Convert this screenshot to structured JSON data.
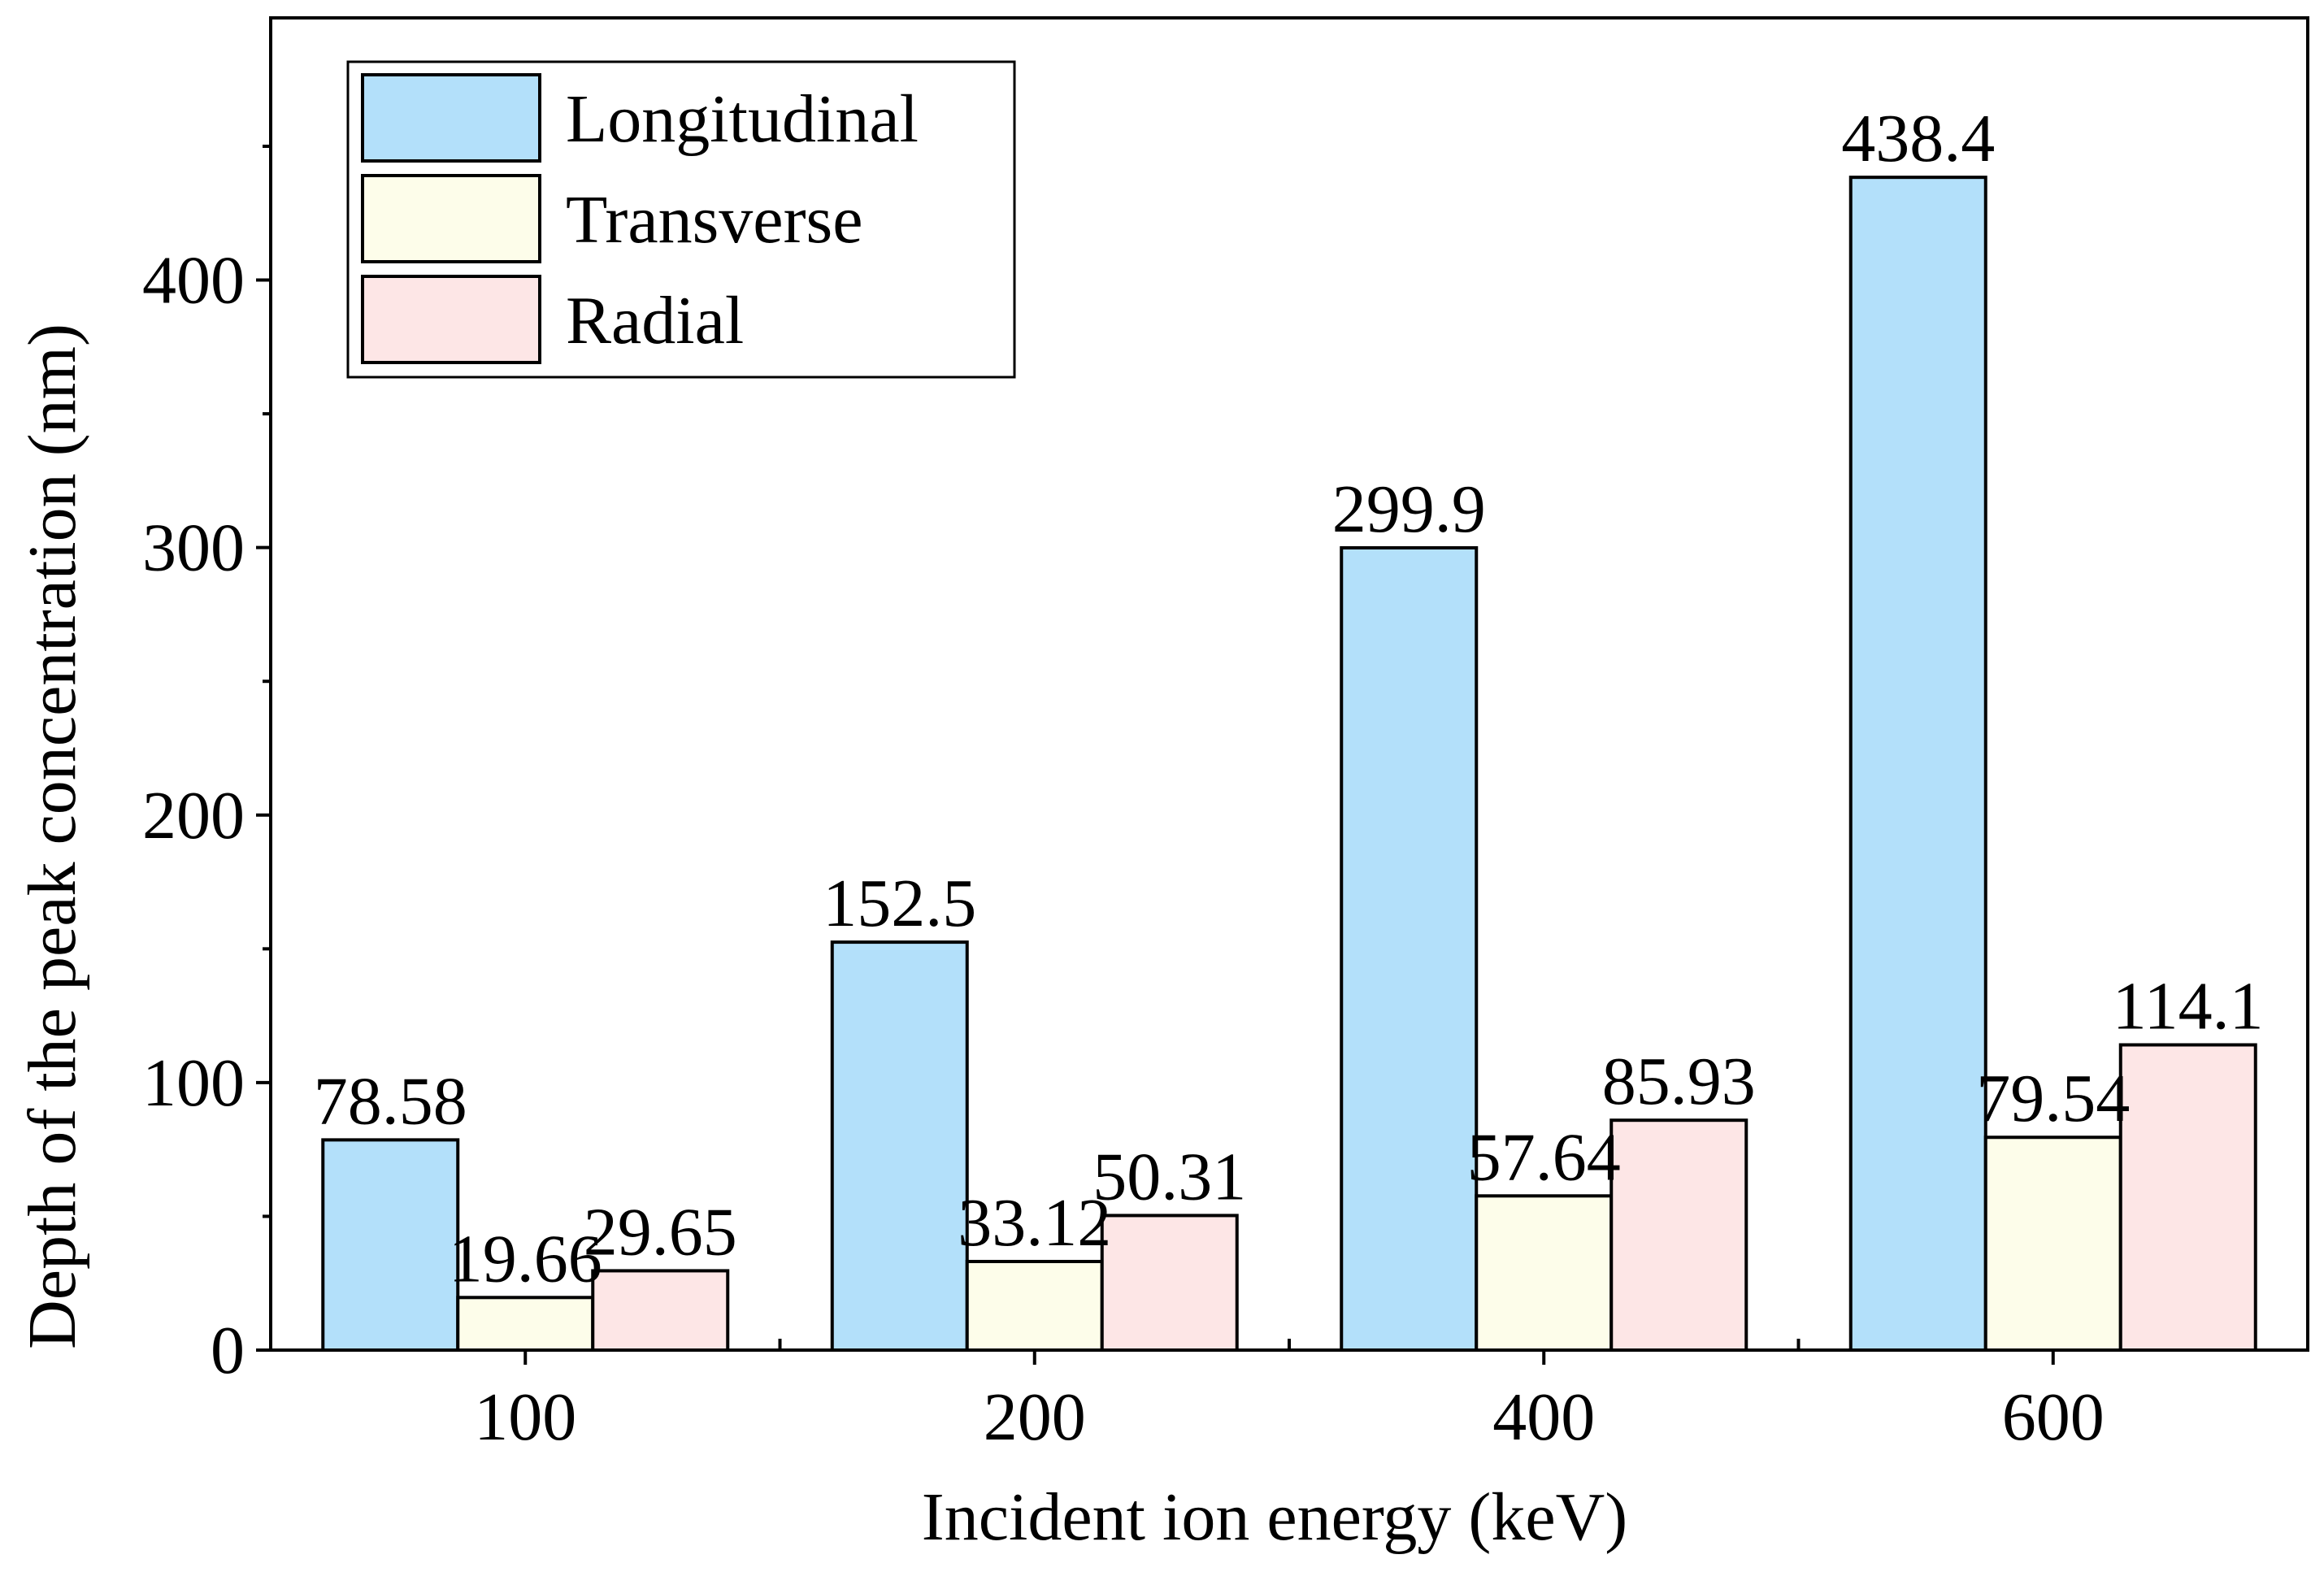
{
  "chart_data": {
    "type": "bar",
    "title": "",
    "xlabel": "Incident ion energy (keV)",
    "ylabel": "Depth of the peak concentration (nm)",
    "categories": [
      "100",
      "200",
      "400",
      "600"
    ],
    "ylim": [
      0,
      498
    ],
    "yticks": [
      0,
      100,
      200,
      300,
      400
    ],
    "ytick_labels": [
      "0",
      "100",
      "200",
      "300",
      "400"
    ],
    "grid": false,
    "legend_position": "top-left",
    "series": [
      {
        "name": "Longitudinal",
        "color": "#b3e0fa",
        "values": [
          78.58,
          152.5,
          299.9,
          438.4
        ],
        "labels": [
          "78.58",
          "152.5",
          "299.9",
          "438.4"
        ]
      },
      {
        "name": "Transverse",
        "color": "#fdfdea",
        "values": [
          19.66,
          33.12,
          57.64,
          79.54
        ],
        "labels": [
          "19.66",
          "33.12",
          "57.64",
          "79.54"
        ]
      },
      {
        "name": "Radial",
        "color": "#fde6e6",
        "values": [
          29.65,
          50.31,
          85.93,
          114.1
        ],
        "labels": [
          "29.65",
          "50.31",
          "85.93",
          "114.1"
        ]
      }
    ]
  }
}
